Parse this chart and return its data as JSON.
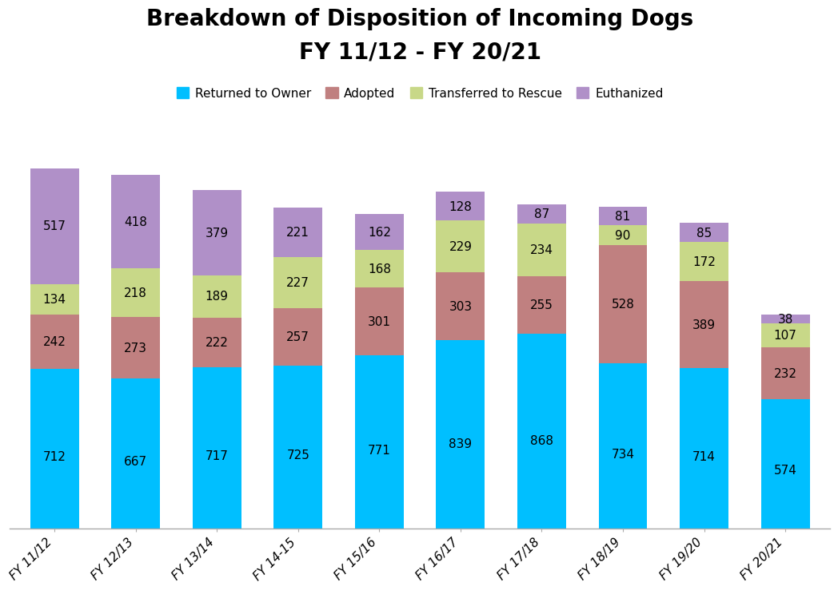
{
  "title": "Breakdown of Disposition of Incoming Dogs\nFY 11/12 - FY 20/21",
  "categories": [
    "FY 11/12",
    "FY 12/13",
    "FY 13/14",
    "FY 14-15",
    "FY 15/16",
    "FY 16/17",
    "FY 17/18",
    "FY 18/19",
    "FY 19/20",
    "FY 20/21"
  ],
  "returned_to_owner": [
    712,
    667,
    717,
    725,
    771,
    839,
    868,
    734,
    714,
    574
  ],
  "adopted": [
    242,
    273,
    222,
    257,
    301,
    303,
    255,
    528,
    389,
    232
  ],
  "transferred": [
    134,
    218,
    189,
    227,
    168,
    229,
    234,
    90,
    172,
    107
  ],
  "euthanized": [
    517,
    418,
    379,
    221,
    162,
    128,
    87,
    81,
    85,
    38
  ],
  "color_returned": "#00BFFF",
  "color_adopted": "#C08080",
  "color_transferred": "#C8D888",
  "color_euthanized": "#B090C8",
  "legend_labels": [
    "Returned to Owner",
    "Adopted",
    "Transferred to Rescue",
    "Euthanized"
  ],
  "title_fontsize": 20,
  "tick_fontsize": 11,
  "bar_value_fontsize": 11,
  "background_color": "#FFFFFF",
  "bar_width": 0.6,
  "ylim": [
    0,
    1800
  ]
}
